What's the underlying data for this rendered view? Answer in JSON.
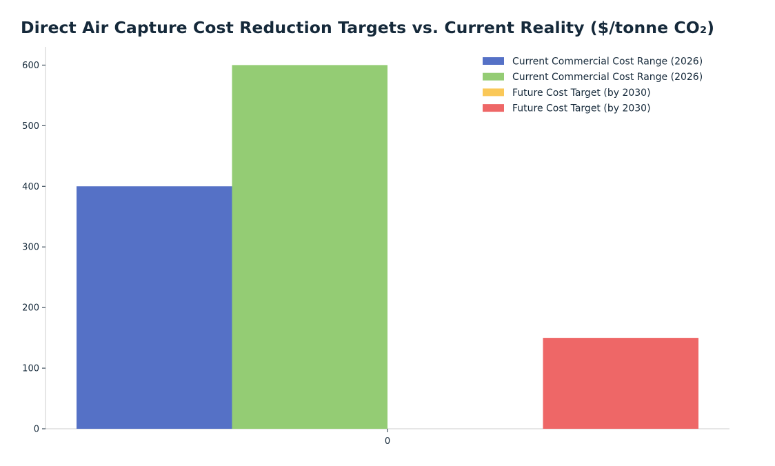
{
  "chart_data": {
    "type": "bar",
    "title": "Direct Air Capture Cost Reduction Targets vs. Current Reality ($/tonne CO₂)",
    "xlabel": "",
    "ylabel": "",
    "categories": [
      "0"
    ],
    "ylim": [
      0,
      630
    ],
    "yticks": [
      0,
      100,
      200,
      300,
      400,
      500,
      600
    ],
    "grid": false,
    "legend_placement": "top-right",
    "series": [
      {
        "name": "Current Commercial Cost Range (2026)",
        "values": [
          400
        ],
        "color": "#5571c6"
      },
      {
        "name": "Current Commercial Cost Range (2026)",
        "values": [
          600
        ],
        "color": "#94cc74"
      },
      {
        "name": "Future Cost Target (by 2030)",
        "values": [
          0
        ],
        "color": "#fac858"
      },
      {
        "name": "Future Cost Target (by 2030)",
        "values": [
          150
        ],
        "color": "#ee6767"
      }
    ]
  }
}
